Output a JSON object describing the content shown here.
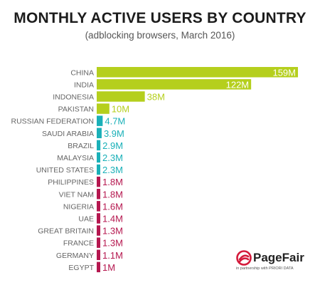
{
  "chart_data": {
    "type": "bar",
    "orientation": "horizontal",
    "title": "MONTHLY ACTIVE USERS BY COUNTRY",
    "subtitle": "(adblocking browsers, March 2016)",
    "categories": [
      "CHINA",
      "INDIA",
      "INDONESIA",
      "PAKISTAN",
      "RUSSIAN FEDERATION",
      "SAUDI ARABIA",
      "BRAZIL",
      "MALAYSIA",
      "UNITED STATES",
      "PHILIPPINES",
      "VIET NAM",
      "NIGERIA",
      "UAE",
      "GREAT BRITAIN",
      "FRANCE",
      "GERMANY",
      "EGYPT"
    ],
    "values": [
      159,
      122,
      38,
      10,
      4.7,
      3.9,
      2.9,
      2.3,
      2.3,
      1.8,
      1.8,
      1.6,
      1.4,
      1.3,
      1.3,
      1.1,
      1
    ],
    "labels": [
      "159M",
      "122M",
      "38M",
      "10M",
      "4.7M",
      "3.9M",
      "2.9M",
      "2.3M",
      "2.3M",
      "1.8M",
      "1.8M",
      "1.6M",
      "1.4M",
      "1.3M",
      "1.3M",
      "1.1M",
      "1M"
    ],
    "color_groups": [
      "lime",
      "lime",
      "lime",
      "lime",
      "teal",
      "teal",
      "teal",
      "teal",
      "teal",
      "crimson",
      "crimson",
      "crimson",
      "crimson",
      "crimson",
      "crimson",
      "crimson",
      "crimson"
    ],
    "colors": {
      "lime": "#b5cf1d",
      "teal": "#1ab0b8",
      "crimson": "#b5174f"
    },
    "xlim": [
      0,
      159
    ],
    "grid": false,
    "legend": "none"
  },
  "branding": {
    "name": "PageFair",
    "sub": "in partnership with PRIORI DATA",
    "icon": "pagefair-logo-icon",
    "icon_color": "#d41b3c"
  }
}
